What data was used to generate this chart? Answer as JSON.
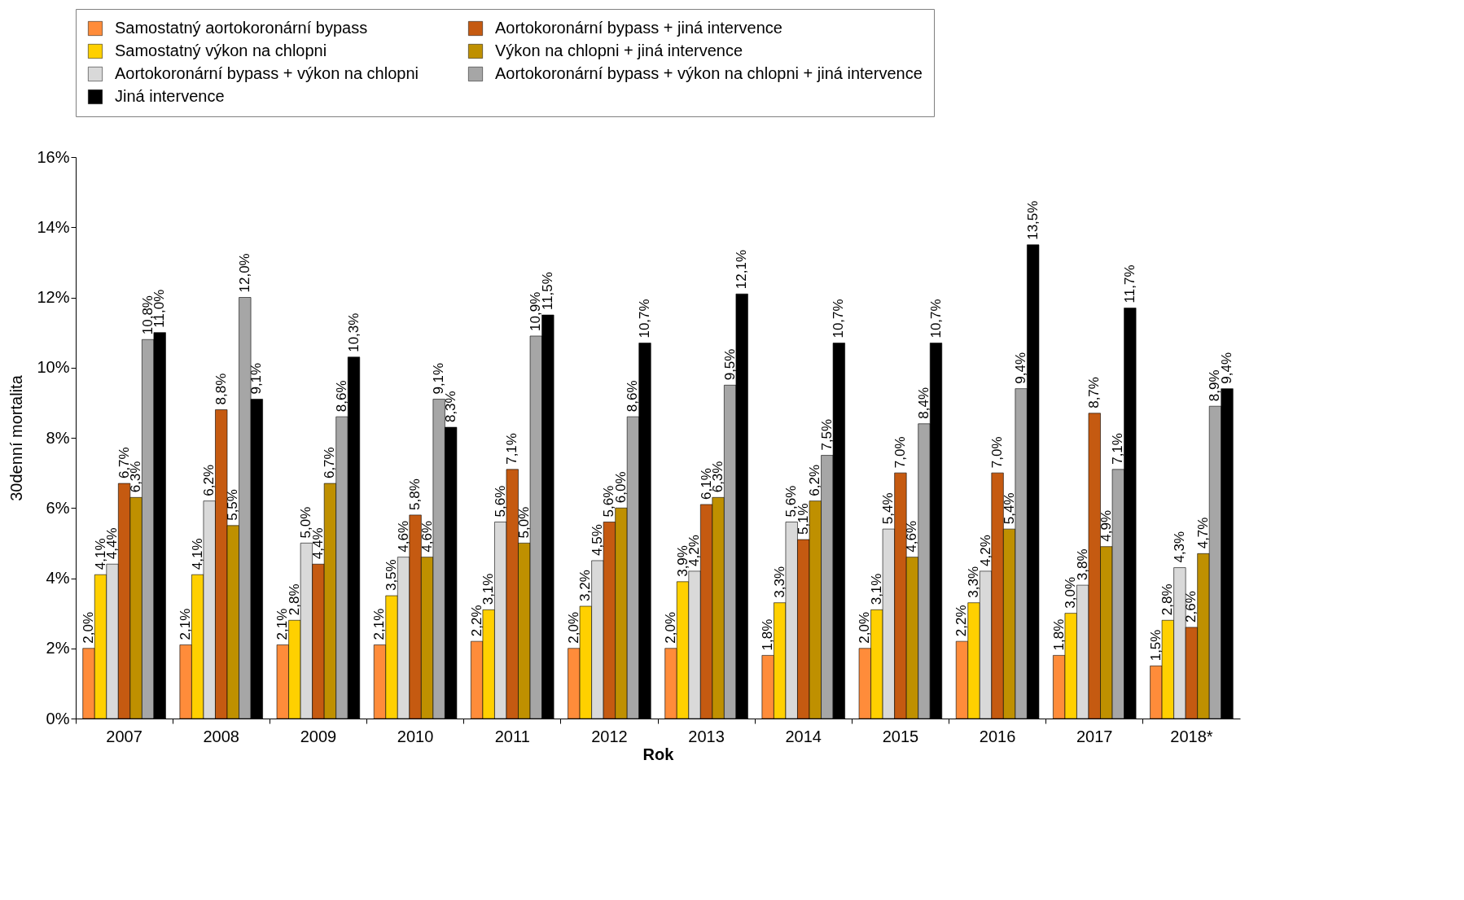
{
  "chart_data": {
    "type": "bar",
    "xlabel": "Rok",
    "ylabel": "30denní mortalita",
    "categories": [
      "2007",
      "2008",
      "2009",
      "2010",
      "2011",
      "2012",
      "2013",
      "2014",
      "2015",
      "2016",
      "2017",
      "2018*"
    ],
    "series": [
      {
        "name": "Samostatný aortokoronární bypass",
        "color": "#ff8c3a",
        "values": [
          2.0,
          2.1,
          2.1,
          2.1,
          2.2,
          2.0,
          2.0,
          1.8,
          2.0,
          2.2,
          1.8,
          1.5
        ],
        "value_labels": [
          "2,0%",
          "2,1%",
          "2,1%",
          "2,1%",
          "2,2%",
          "2,0%",
          "2,0%",
          "1,8%",
          "2,0%",
          "2,2%",
          "1,8%",
          "1,5%"
        ]
      },
      {
        "name": "Samostatný výkon na chlopni",
        "color": "#ffd000",
        "values": [
          4.1,
          4.1,
          2.8,
          3.5,
          3.1,
          3.2,
          3.9,
          3.3,
          3.1,
          3.3,
          3.0,
          2.8
        ],
        "value_labels": [
          "4,1%",
          "4,1%",
          "2,8%",
          "3,5%",
          "3,1%",
          "3,2%",
          "3,9%",
          "3,3%",
          "3,1%",
          "3,3%",
          "3,0%",
          "2,8%"
        ]
      },
      {
        "name": "Aortokoronární bypass + výkon na chlopni",
        "color": "#d9d9d9",
        "values": [
          4.4,
          6.2,
          5.0,
          4.6,
          5.6,
          4.5,
          4.2,
          5.6,
          5.4,
          4.2,
          3.8,
          4.3
        ],
        "value_labels": [
          "4,4%",
          "6,2%",
          "5,0%",
          "4,6%",
          "5,6%",
          "4,5%",
          "4,2%",
          "5,6%",
          "5,4%",
          "4,2%",
          "3,8%",
          "4,3%"
        ]
      },
      {
        "name": "Aortokoronární bypass + jiná intervence",
        "color": "#c55a11",
        "values": [
          6.7,
          8.8,
          4.4,
          5.8,
          7.1,
          5.6,
          6.1,
          5.1,
          7.0,
          7.0,
          8.7,
          2.6
        ],
        "value_labels": [
          "6,7%",
          "8,8%",
          "4,4%",
          "5,8%",
          "7,1%",
          "5,6%",
          "6,1%",
          "5,1%",
          "7,0%",
          "7,0%",
          "8,7%",
          "2,6%"
        ]
      },
      {
        "name": "Výkon na chlopni + jiná intervence",
        "color": "#bf9000",
        "values": [
          6.3,
          5.5,
          6.7,
          4.6,
          5.0,
          6.0,
          6.3,
          6.2,
          4.6,
          5.4,
          4.9,
          4.7
        ],
        "value_labels": [
          "6,3%",
          "5,5%",
          "6,7%",
          "4,6%",
          "5,0%",
          "6,0%",
          "6,3%",
          "6,2%",
          "4,6%",
          "5,4%",
          "4,9%",
          "4,7%"
        ]
      },
      {
        "name": "Aortokoronární bypass + výkon na chlopni + jiná intervence",
        "color": "#a6a6a6",
        "values": [
          10.8,
          12.0,
          8.6,
          9.1,
          10.9,
          8.6,
          9.5,
          7.5,
          8.4,
          9.4,
          7.1,
          8.9
        ],
        "value_labels": [
          "10,8%",
          "12,0%",
          "8,6%",
          "9,1%",
          "10,9%",
          "8,6%",
          "9,5%",
          "7,5%",
          "8,4%",
          "9,4%",
          "7,1%",
          "8,9%"
        ]
      },
      {
        "name": "Jiná intervence",
        "color": "#000000",
        "values": [
          11.0,
          9.1,
          10.3,
          8.3,
          11.5,
          10.7,
          12.1,
          10.7,
          10.7,
          13.5,
          11.7,
          9.4
        ],
        "value_labels": [
          "11,0%",
          "9,1%",
          "10,3%",
          "8,3%",
          "11,5%",
          "10,7%",
          "12,1%",
          "10,7%",
          "10,7%",
          "13,5%",
          "11,7%",
          "9,4%"
        ]
      }
    ],
    "ylim": [
      0,
      16
    ],
    "yticks": [
      {
        "value": 0,
        "label": "0%"
      },
      {
        "value": 2,
        "label": "2%"
      },
      {
        "value": 4,
        "label": "4%"
      },
      {
        "value": 6,
        "label": "6%"
      },
      {
        "value": 8,
        "label": "8%"
      },
      {
        "value": 10,
        "label": "10%"
      },
      {
        "value": 12,
        "label": "12%"
      },
      {
        "value": 14,
        "label": "14%"
      },
      {
        "value": 16,
        "label": "16%"
      }
    ],
    "grid": false,
    "legend": "top"
  }
}
